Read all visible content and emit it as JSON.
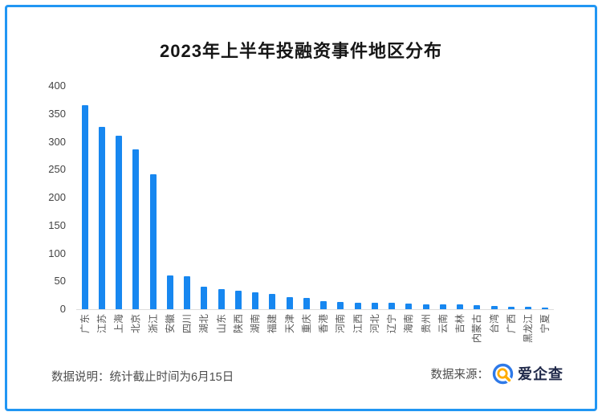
{
  "page": {
    "border_color": "#2196F3",
    "background": "#ffffff"
  },
  "chart_data": {
    "type": "bar",
    "title": "2023年上半年投融资事件地区分布",
    "categories": [
      "广东",
      "江苏",
      "上海",
      "北京",
      "浙江",
      "安徽",
      "四川",
      "湖北",
      "山东",
      "陕西",
      "湖南",
      "福建",
      "天津",
      "重庆",
      "香港",
      "河南",
      "江西",
      "河北",
      "辽宁",
      "海南",
      "贵州",
      "云南",
      "吉林",
      "内蒙古",
      "台湾",
      "广西",
      "黑龙江",
      "宁夏"
    ],
    "values": [
      365,
      327,
      311,
      287,
      242,
      61,
      59,
      40,
      36,
      33,
      30,
      28,
      22,
      20,
      14,
      13,
      12,
      12,
      11,
      10,
      9,
      8,
      8,
      7,
      6,
      5,
      4,
      3
    ],
    "xlabel": "",
    "ylabel": "",
    "ylim": [
      0,
      400
    ],
    "yticks": [
      0,
      50,
      100,
      150,
      200,
      250,
      300,
      350,
      400
    ],
    "grid": false,
    "legend": "none",
    "bar_color": "#1787F0",
    "axis_line_color": "#dddddd",
    "x_labels_rotation_deg": -90
  },
  "footer": {
    "note": "数据说明：统计截止时间为6月15日",
    "source_label": "数据来源：",
    "source_name": "爱企查",
    "logo_icon": "magnifier-logo",
    "logo_ring_color": "#2E79E8",
    "logo_glass_color": "#FFAC00"
  }
}
